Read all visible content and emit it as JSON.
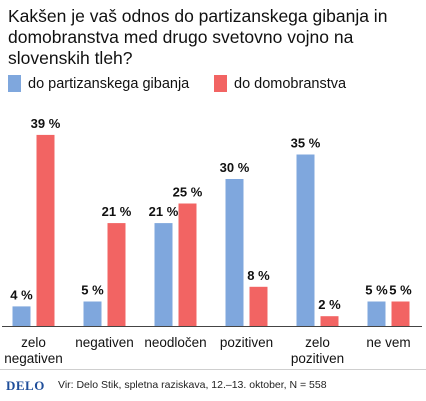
{
  "colors": {
    "partisan": "#7fa7dd",
    "home_guard": "#f26463",
    "text": "#111111",
    "baseline": "#444444",
    "logo": "#1f4e9a"
  },
  "chart_data": {
    "type": "bar",
    "title": "Kakšen je vaš odnos do partizanskega gibanja in domobranstva med drugo svetovno vojno na slovenskih tleh?",
    "categories": [
      [
        "zelo",
        "negativen"
      ],
      [
        "negativen"
      ],
      [
        "neodločen"
      ],
      [
        "pozitiven"
      ],
      [
        "zelo",
        "pozitiven"
      ],
      [
        "ne vem"
      ]
    ],
    "series": [
      {
        "name": "do partizanskega gibanja",
        "values": [
          4,
          5,
          21,
          30,
          35,
          5
        ]
      },
      {
        "name": "do domobranstva",
        "values": [
          39,
          21,
          25,
          8,
          2,
          5
        ]
      }
    ],
    "value_suffix": " %",
    "ylim": [
      0,
      40
    ],
    "grid": false,
    "legend_position": "top-left"
  },
  "footer": {
    "logo": "DELO",
    "source": "Vir: Delo Stik, spletna raziskava, 12.–13. oktober, N = 558"
  }
}
